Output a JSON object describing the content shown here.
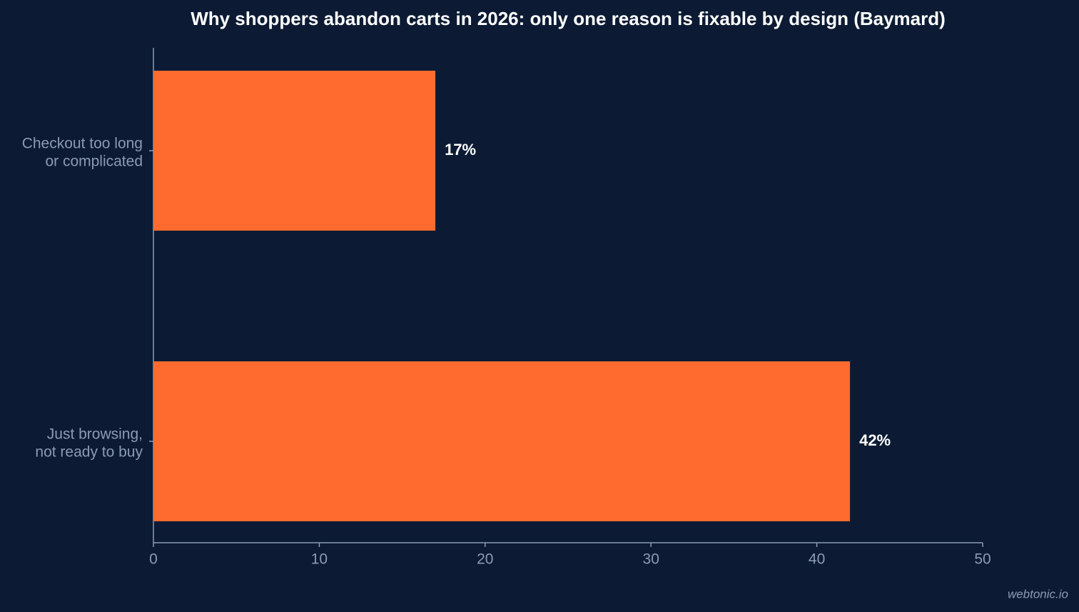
{
  "chart_data": {
    "type": "barh",
    "title": "Why shoppers abandon carts in 2026: only one reason is fixable by design (Baymard)",
    "categories": [
      "Checkout too long\nor complicated",
      "Just browsing,\nnot ready to buy"
    ],
    "values": [
      17,
      42
    ],
    "value_labels": [
      "17%",
      "42%"
    ],
    "color": "#ff6b2f",
    "xlim": [
      0,
      50
    ],
    "xticks": [
      0,
      10,
      20,
      30,
      40,
      50
    ],
    "grid": false,
    "watermark": "webtonic.io"
  }
}
